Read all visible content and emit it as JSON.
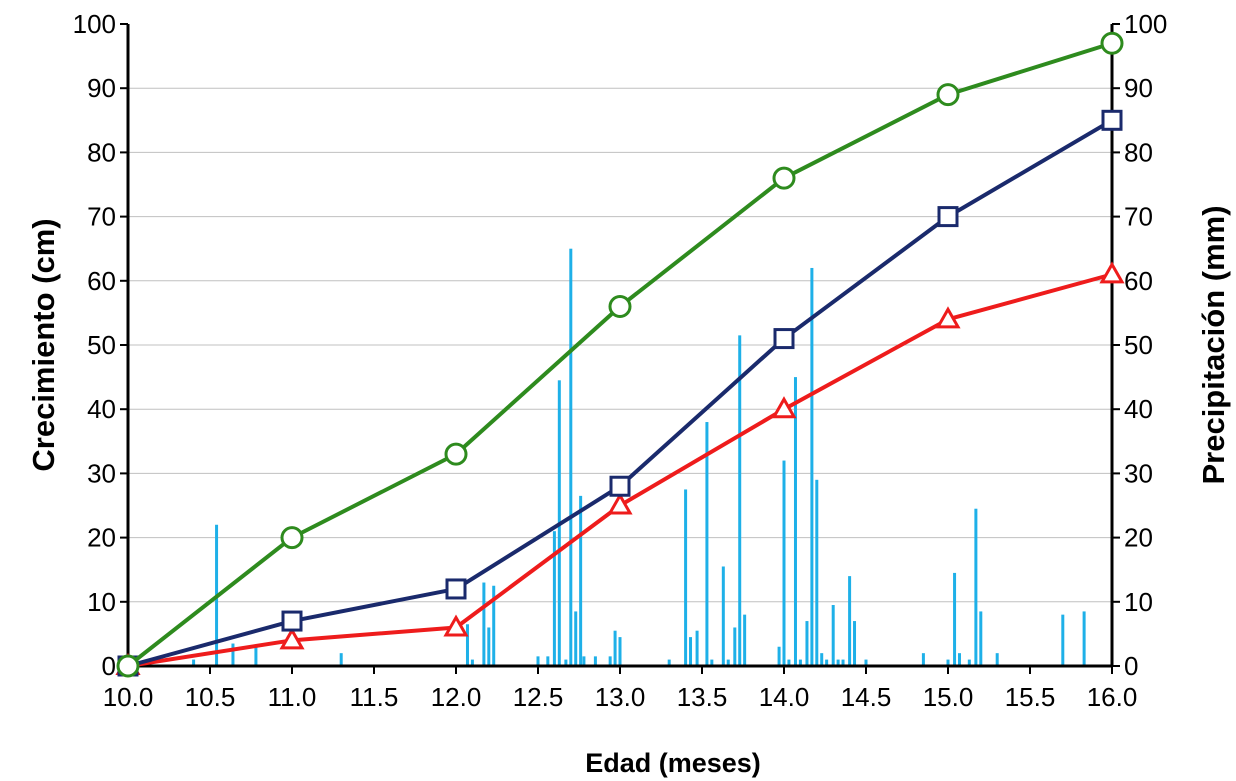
{
  "chart_data": {
    "type": "line",
    "xlabel": "Edad (meses)",
    "ylabel": "Crecimiento (cm)",
    "y2label": "Precipitación (mm)",
    "xlim": [
      10.0,
      16.0
    ],
    "ylim": [
      0,
      100
    ],
    "y2lim": [
      0,
      100
    ],
    "x_ticks": [
      "10.0",
      "10.5",
      "11.0",
      "11.5",
      "12.0",
      "12.5",
      "13.0",
      "13.5",
      "14.0",
      "14.5",
      "15.0",
      "15.5",
      "16.0"
    ],
    "y_ticks": [
      "0",
      "10",
      "20",
      "30",
      "40",
      "50",
      "60",
      "70",
      "80",
      "90",
      "100"
    ],
    "y2_ticks": [
      "0",
      "10",
      "20",
      "30",
      "40",
      "50",
      "60",
      "70",
      "80",
      "90",
      "100"
    ],
    "grid": "horizontal",
    "legend": "none",
    "series": [
      {
        "marker": "circle",
        "color": "#2e8b1e",
        "x": [
          10,
          11,
          12,
          13,
          14,
          15,
          16
        ],
        "values": [
          0,
          20,
          33,
          56,
          76,
          89,
          97
        ]
      },
      {
        "marker": "square",
        "color": "#1a2a6c",
        "x": [
          10,
          11,
          12,
          13,
          14,
          15,
          16
        ],
        "values": [
          0,
          7,
          12,
          28,
          51,
          70,
          85
        ]
      },
      {
        "marker": "triangle",
        "color": "#ee1c1c",
        "x": [
          10,
          11,
          12,
          13,
          14,
          15,
          16
        ],
        "values": [
          0,
          4,
          6,
          25,
          40,
          54,
          61
        ]
      }
    ],
    "precipitation": {
      "type": "bar",
      "axis": "y2",
      "color": "#1eb0e8",
      "x": [
        10.4,
        10.54,
        10.64,
        10.78,
        11.3,
        12.07,
        12.1,
        12.17,
        12.2,
        12.23,
        12.5,
        12.56,
        12.6,
        12.63,
        12.67,
        12.7,
        12.73,
        12.76,
        12.78,
        12.85,
        12.94,
        12.97,
        13.0,
        13.3,
        13.4,
        13.43,
        13.47,
        13.53,
        13.56,
        13.63,
        13.66,
        13.7,
        13.73,
        13.76,
        13.97,
        14.0,
        14.03,
        14.07,
        14.1,
        14.14,
        14.17,
        14.2,
        14.23,
        14.26,
        14.3,
        14.33,
        14.36,
        14.4,
        14.43,
        14.5,
        14.85,
        15.0,
        15.04,
        15.07,
        15.13,
        15.17,
        15.2,
        15.3,
        15.7,
        15.83
      ],
      "values": [
        1,
        22,
        3.5,
        3,
        2,
        6.5,
        1,
        13,
        6,
        12.5,
        1.5,
        1.5,
        21,
        44.5,
        1,
        65,
        8.5,
        26.5,
        1.5,
        1.5,
        1.5,
        5.5,
        4.5,
        1,
        27.5,
        4.5,
        5.5,
        38,
        1,
        15.5,
        1,
        6,
        51.5,
        8,
        3,
        32,
        1,
        45,
        1,
        7,
        62,
        29,
        2,
        1,
        9.5,
        1,
        1,
        14,
        7,
        1,
        2,
        1,
        14.5,
        2,
        1,
        24.5,
        8.5,
        2,
        8,
        8.5
      ]
    }
  }
}
